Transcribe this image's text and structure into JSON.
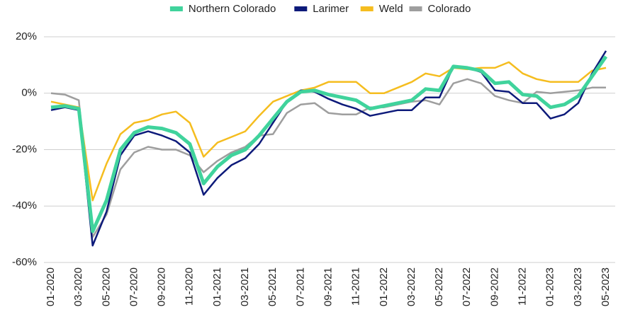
{
  "chart_data": {
    "type": "line",
    "categories": [
      "01-2020",
      null,
      "03-2020",
      null,
      "05-2020",
      null,
      "07-2020",
      null,
      "09-2020",
      null,
      "11-2020",
      null,
      "01-2021",
      null,
      "03-2021",
      null,
      "05-2021",
      null,
      "07-2021",
      null,
      "09-2021",
      null,
      "11-2021",
      null,
      "01-2022",
      null,
      "03-2022",
      null,
      "05-2022",
      null,
      "07-2022",
      null,
      "09-2022",
      null,
      "11-2022",
      null,
      "01-2023",
      null,
      "03-2023",
      null,
      "05-2023"
    ],
    "series": [
      {
        "name": "Northern Colorado",
        "color": "#40d39c",
        "width": 5,
        "values": [
          -5,
          -4.5,
          -5.5,
          -49,
          -38,
          -20,
          -14,
          -12,
          -12.5,
          -14,
          -18,
          -32,
          -26,
          -22,
          -20,
          -15,
          -9,
          -3,
          0.5,
          1,
          -0.5,
          -1.5,
          -2.5,
          -5.5,
          -4.5,
          -3.5,
          -2.5,
          1.5,
          1,
          9.5,
          9,
          8,
          3.5,
          4,
          -0.5,
          -1,
          -5,
          -4,
          -1,
          6,
          13
        ]
      },
      {
        "name": "Larimer",
        "color": "#0d1a7a",
        "width": 2.5,
        "values": [
          -6,
          -5,
          -6,
          -54,
          -42,
          -22,
          -15,
          -13.5,
          -15,
          -17,
          -21,
          -36,
          -30,
          -25.5,
          -23,
          -18,
          -10.5,
          -3,
          1,
          0.5,
          -2,
          -4,
          -5.5,
          -8,
          -7,
          -6,
          -6,
          -1.5,
          -1.5,
          9.5,
          9,
          7.5,
          1,
          0.5,
          -3.5,
          -3.5,
          -9,
          -7.5,
          -3.5,
          7,
          15
        ]
      },
      {
        "name": "Weld",
        "color": "#f5bd1f",
        "width": 2.5,
        "values": [
          -3,
          -4,
          -5,
          -38,
          -25,
          -14.5,
          -10.5,
          -9.5,
          -7.5,
          -6.5,
          -10.5,
          -22.5,
          -17.5,
          -15.5,
          -13.5,
          -8,
          -3,
          -1,
          1,
          2,
          4,
          4,
          4,
          0,
          0,
          2,
          4,
          7,
          6,
          9,
          8.5,
          9,
          9,
          11,
          7,
          5,
          4,
          4,
          4,
          8,
          9
        ]
      },
      {
        "name": "Colorado",
        "color": "#9e9e9e",
        "width": 2.5,
        "values": [
          0,
          -0.5,
          -2.5,
          -51,
          -43,
          -27,
          -21,
          -19,
          -20,
          -20,
          -22,
          -28,
          -24,
          -21,
          -19,
          -15,
          -14.5,
          -7,
          -4,
          -3.5,
          -7,
          -7.5,
          -7.5,
          -5,
          -5,
          -4,
          -3,
          -2.5,
          -4,
          3.5,
          5,
          3.5,
          -1,
          -2.5,
          -3.5,
          0.5,
          0,
          0.5,
          1,
          2,
          2
        ]
      }
    ],
    "ylim": [
      -60,
      20
    ],
    "yticks": [
      {
        "value": -60,
        "label": "-60%"
      },
      {
        "value": -40,
        "label": "-40%"
      },
      {
        "value": -20,
        "label": "-20%"
      },
      {
        "value": 0,
        "label": "0%"
      },
      {
        "value": 20,
        "label": "20%"
      }
    ],
    "grid": true
  }
}
